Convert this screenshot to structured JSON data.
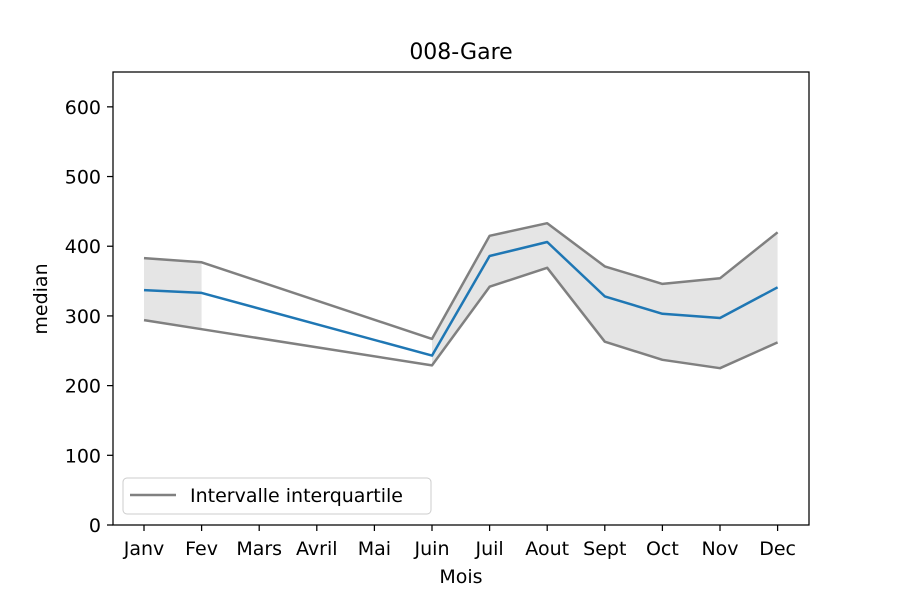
{
  "chart_data": {
    "type": "line",
    "title": "008-Gare",
    "xlabel": "Mois",
    "ylabel": "median",
    "categories": [
      "Janv",
      "Fev",
      "Mars",
      "Avril",
      "Mai",
      "Juin",
      "Juil",
      "Aout",
      "Sept",
      "Oct",
      "Nov",
      "Dec"
    ],
    "ylim": [
      0,
      650
    ],
    "yticks": [
      0,
      100,
      200,
      300,
      400,
      500,
      600
    ],
    "series": [
      {
        "key": "median",
        "color": "#1f77b4",
        "points": [
          [
            "Janv",
            337
          ],
          [
            "Fev",
            333
          ],
          [
            "Juin",
            243
          ],
          [
            "Juil",
            386
          ],
          [
            "Aout",
            406
          ],
          [
            "Sept",
            328
          ],
          [
            "Oct",
            303
          ],
          [
            "Nov",
            297
          ],
          [
            "Dec",
            341
          ]
        ]
      },
      {
        "key": "q3",
        "name": "Intervalle interquartile",
        "color": "#808080",
        "points": [
          [
            "Janv",
            383
          ],
          [
            "Fev",
            377
          ],
          [
            "Juin",
            267
          ],
          [
            "Juil",
            415
          ],
          [
            "Aout",
            433
          ],
          [
            "Sept",
            371
          ],
          [
            "Oct",
            346
          ],
          [
            "Nov",
            354
          ],
          [
            "Dec",
            420
          ]
        ]
      },
      {
        "key": "q1",
        "color": "#808080",
        "points": [
          [
            "Janv",
            294
          ],
          [
            "Fev",
            281
          ],
          [
            "Juin",
            229
          ],
          [
            "Juil",
            342
          ],
          [
            "Aout",
            369
          ],
          [
            "Sept",
            263
          ],
          [
            "Oct",
            237
          ],
          [
            "Nov",
            225
          ],
          [
            "Dec",
            262
          ]
        ]
      }
    ],
    "bands": [
      {
        "label": "IQR Janv-Fev",
        "fill": "#e5e5e5",
        "from": "Janv",
        "to": "Fev"
      },
      {
        "label": "IQR Juin-Dec",
        "fill": "#e5e5e5",
        "from": "Juin",
        "to": "Dec"
      }
    ],
    "legend": {
      "position": "lower-left",
      "entries": [
        "Intervalle interquartile"
      ]
    },
    "grid": false
  }
}
